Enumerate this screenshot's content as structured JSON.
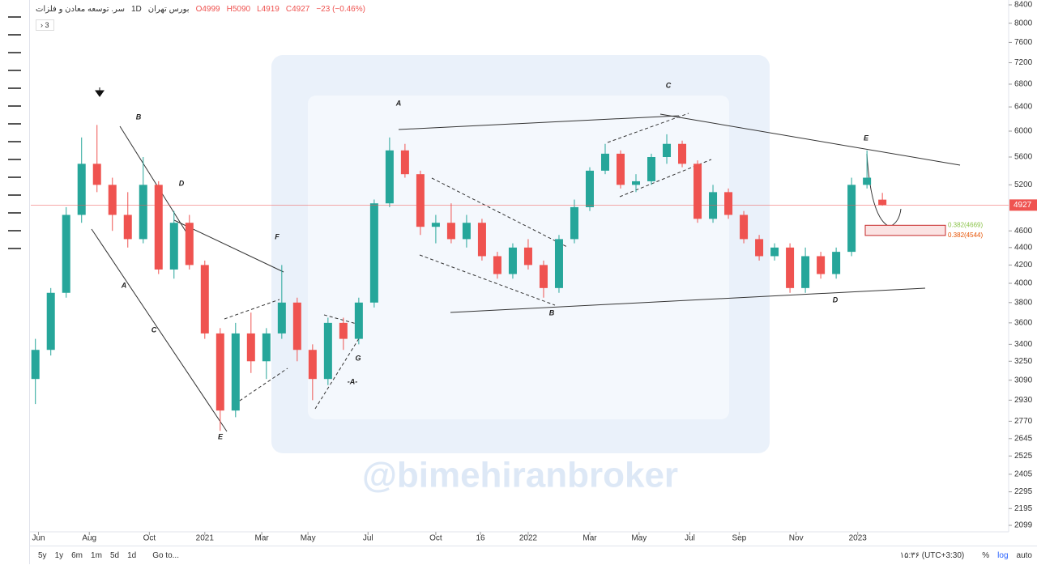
{
  "header": {
    "symbol": "سر. توسعه معادن و فلزات",
    "interval": "1D",
    "exchange": "بورس تهران",
    "open": "O4999",
    "high": "H5090",
    "low": "L4919",
    "close": "C4927",
    "change": "−23 (−0.46%)",
    "indicators": "3"
  },
  "toolbar": {
    "ranges": [
      "5y",
      "1y",
      "6m",
      "1m",
      "5d",
      "1d"
    ],
    "goto": "Go to...",
    "time": "۱۵:۳۶ (UTC+3:30)",
    "percent": "%",
    "log": "log",
    "auto": "auto"
  },
  "chart_data": {
    "type": "candlestick",
    "log_scale": true,
    "up_color": "#26a69a",
    "down_color": "#ef5350",
    "open": [
      3100,
      3350,
      3900,
      4800,
      5500,
      5200,
      4800,
      4500,
      5200,
      4150,
      4700,
      4200,
      3500,
      2850,
      3500,
      3250,
      3500,
      3800,
      3350,
      3100,
      3600,
      3450,
      3800,
      4950,
      5700,
      5350,
      4650,
      4700,
      4500,
      4700,
      4300,
      4100,
      4400,
      4200,
      3950,
      4500,
      4900,
      5400,
      5650,
      5200,
      5250,
      5600,
      5800,
      5500,
      4750,
      5100,
      4800,
      4500,
      4300,
      4400,
      3950,
      4300,
      4100,
      4350,
      5200,
      4999
    ],
    "high": [
      3450,
      3950,
      4900,
      5900,
      6100,
      5300,
      5100,
      5600,
      5250,
      4850,
      4800,
      4250,
      3550,
      3600,
      3700,
      3550,
      4200,
      3850,
      3400,
      3650,
      3650,
      3850,
      5000,
      5900,
      5800,
      5400,
      4800,
      4950,
      4800,
      4750,
      4350,
      4450,
      4500,
      4250,
      4550,
      5000,
      5450,
      5800,
      5700,
      5350,
      5650,
      5950,
      5850,
      5550,
      5200,
      5150,
      4850,
      4550,
      4450,
      4450,
      4400,
      4350,
      4400,
      5300,
      5700,
      5090
    ],
    "low": [
      2900,
      3300,
      3850,
      4700,
      5100,
      4600,
      4400,
      4450,
      4100,
      4050,
      4150,
      3450,
      2700,
      2800,
      3150,
      3100,
      3450,
      3250,
      2930,
      3050,
      3350,
      3400,
      3750,
      4900,
      5300,
      4550,
      4450,
      4450,
      4400,
      4250,
      4050,
      4050,
      4150,
      3850,
      3900,
      4450,
      4850,
      5350,
      5150,
      5100,
      5200,
      5500,
      5450,
      4700,
      4700,
      4750,
      4450,
      4250,
      4250,
      3900,
      3900,
      4050,
      4050,
      4300,
      5150,
      4919
    ],
    "close": [
      3350,
      3900,
      4800,
      5500,
      5200,
      4800,
      4500,
      5200,
      4150,
      4700,
      4200,
      3500,
      2850,
      3500,
      3250,
      3500,
      3800,
      3350,
      3100,
      3600,
      3450,
      3800,
      4950,
      5700,
      5350,
      4650,
      4700,
      4500,
      4700,
      4300,
      4100,
      4400,
      4200,
      3950,
      4500,
      4900,
      5400,
      5650,
      5200,
      5250,
      5600,
      5800,
      5500,
      4750,
      5100,
      4800,
      4500,
      4300,
      4400,
      3950,
      4300,
      4100,
      4350,
      5200,
      5300,
      4927
    ],
    "last_price": 4927,
    "ylim": [
      2099,
      8400
    ],
    "yticks": [
      8400,
      8000,
      7600,
      7200,
      6800,
      6400,
      6000,
      5600,
      5200,
      4600,
      4400,
      4200,
      4000,
      3800,
      3600,
      3400,
      3250,
      3090,
      2930,
      2770,
      2645,
      2525,
      2405,
      2295,
      2195,
      2099
    ],
    "xlim": [
      -0.3,
      63.2
    ],
    "xticks": [
      {
        "value": 0.2,
        "label": "Jun"
      },
      {
        "value": 3.5,
        "label": "Aug"
      },
      {
        "value": 7.4,
        "label": "Oct"
      },
      {
        "value": 11,
        "label": "2021"
      },
      {
        "value": 14.7,
        "label": "Mar"
      },
      {
        "value": 17.7,
        "label": "May"
      },
      {
        "value": 21.6,
        "label": "Jul"
      },
      {
        "value": 26,
        "label": "Oct"
      },
      {
        "value": 28.9,
        "label": "16"
      },
      {
        "value": 32,
        "label": "2022"
      },
      {
        "value": 36,
        "label": "Mar"
      },
      {
        "value": 39.2,
        "label": "May"
      },
      {
        "value": 42.5,
        "label": "Jul"
      },
      {
        "value": 45.7,
        "label": "Sep"
      },
      {
        "value": 49.4,
        "label": "Nov"
      },
      {
        "value": 53.4,
        "label": "2023"
      }
    ],
    "fib_levels": [
      {
        "value": 4669,
        "label": "0.382(4669)"
      },
      {
        "value": 4544,
        "label": "0.382(4544)"
      }
    ],
    "annotations": [
      "B",
      "D",
      "A",
      "C",
      "E",
      "F",
      "G",
      "-A-",
      "A",
      "C",
      "B",
      "E",
      "D"
    ],
    "watermark": "@bimehiranbroker"
  }
}
